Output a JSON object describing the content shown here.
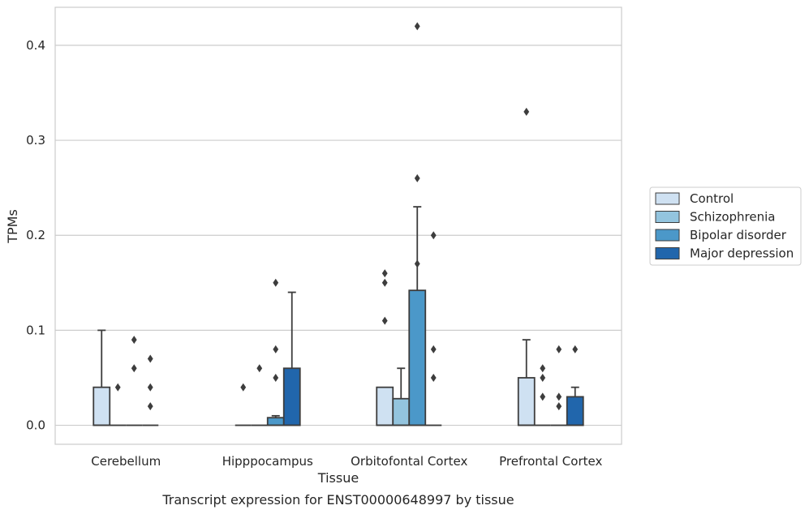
{
  "chart_data": {
    "type": "box",
    "caption": "Transcript expression for ENST00000648997 by tissue",
    "xlabel": "Tissue",
    "ylabel": "TPMs",
    "ylim": [
      -0.02,
      0.44
    ],
    "yticks": [
      0.0,
      0.1,
      0.2,
      0.3,
      0.4
    ],
    "ytick_labels": [
      "0.0",
      "0.1",
      "0.2",
      "0.3",
      "0.4"
    ],
    "grid": "horizontal",
    "legend_position": "right",
    "categories": [
      "Cerebellum",
      "Hipppocampus",
      "Orbitofontal Cortex",
      "Prefrontal Cortex"
    ],
    "series": [
      {
        "name": "Control",
        "color": "#cfe1f2",
        "boxes": [
          {
            "q1": 0.0,
            "median": 0.0,
            "q3": 0.04,
            "whisker_low": 0.0,
            "whisker_high": 0.1,
            "outliers": []
          },
          {
            "q1": 0.0,
            "median": 0.0,
            "q3": 0.0,
            "whisker_low": 0.0,
            "whisker_high": 0.0,
            "outliers": [
              0.04
            ]
          },
          {
            "q1": 0.0,
            "median": 0.0,
            "q3": 0.04,
            "whisker_low": 0.0,
            "whisker_high": 0.04,
            "outliers": [
              0.11,
              0.15,
              0.16
            ]
          },
          {
            "q1": 0.0,
            "median": 0.0,
            "q3": 0.05,
            "whisker_low": 0.0,
            "whisker_high": 0.09,
            "outliers": [
              0.33
            ]
          }
        ]
      },
      {
        "name": "Schizophrenia",
        "color": "#93c4de",
        "boxes": [
          {
            "q1": 0.0,
            "median": 0.0,
            "q3": 0.0,
            "whisker_low": 0.0,
            "whisker_high": 0.0,
            "outliers": [
              0.04
            ]
          },
          {
            "q1": 0.0,
            "median": 0.0,
            "q3": 0.0,
            "whisker_low": 0.0,
            "whisker_high": 0.0,
            "outliers": [
              0.06
            ]
          },
          {
            "q1": 0.0,
            "median": 0.0,
            "q3": 0.028,
            "whisker_low": 0.0,
            "whisker_high": 0.06,
            "outliers": []
          },
          {
            "q1": 0.0,
            "median": 0.0,
            "q3": 0.0,
            "whisker_low": 0.0,
            "whisker_high": 0.0,
            "outliers": [
              0.03,
              0.05,
              0.06
            ]
          }
        ]
      },
      {
        "name": "Bipolar disorder",
        "color": "#4b98c9",
        "boxes": [
          {
            "q1": 0.0,
            "median": 0.0,
            "q3": 0.0,
            "whisker_low": 0.0,
            "whisker_high": 0.0,
            "outliers": [
              0.06,
              0.09
            ]
          },
          {
            "q1": 0.0,
            "median": 0.0,
            "q3": 0.008,
            "whisker_low": 0.0,
            "whisker_high": 0.01,
            "outliers": [
              0.05,
              0.08,
              0.15
            ]
          },
          {
            "q1": 0.0,
            "median": 0.0,
            "q3": 0.142,
            "whisker_low": 0.0,
            "whisker_high": 0.23,
            "outliers": [
              0.17,
              0.26,
              0.42
            ]
          },
          {
            "q1": 0.0,
            "median": 0.0,
            "q3": 0.0,
            "whisker_low": 0.0,
            "whisker_high": 0.0,
            "outliers": [
              0.02,
              0.03,
              0.08
            ]
          }
        ]
      },
      {
        "name": "Major depression",
        "color": "#2166ac",
        "boxes": [
          {
            "q1": 0.0,
            "median": 0.0,
            "q3": 0.0,
            "whisker_low": 0.0,
            "whisker_high": 0.0,
            "outliers": [
              0.02,
              0.04,
              0.07
            ]
          },
          {
            "q1": 0.0,
            "median": 0.0,
            "q3": 0.06,
            "whisker_low": 0.0,
            "whisker_high": 0.14,
            "outliers": []
          },
          {
            "q1": 0.0,
            "median": 0.0,
            "q3": 0.0,
            "whisker_low": 0.0,
            "whisker_high": 0.0,
            "outliers": [
              0.05,
              0.08,
              0.2
            ]
          },
          {
            "q1": 0.0,
            "median": 0.0,
            "q3": 0.03,
            "whisker_low": 0.0,
            "whisker_high": 0.04,
            "outliers": [
              0.08
            ]
          }
        ]
      }
    ],
    "colors": {
      "grid": "#cccccc",
      "frame": "#cccccc",
      "box_edge": "#3d3d3d",
      "legend_border": "#cccccc"
    }
  }
}
